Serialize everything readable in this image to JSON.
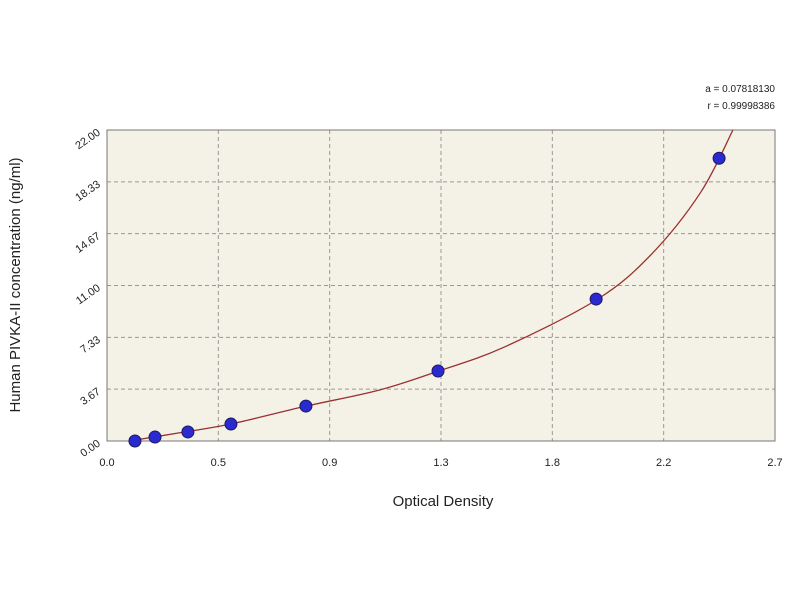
{
  "chart_data": {
    "type": "scatter",
    "x_label": "Optical Density",
    "y_label": "Human PIVKA-II concentration (ng/ml)",
    "annotations": [
      "a = 0.07818130",
      "r = 0.99998386"
    ],
    "x": [
      0.113,
      0.194,
      0.327,
      0.501,
      0.804,
      1.338,
      1.977,
      2.474
    ],
    "values": [
      0.0,
      0.28,
      0.64,
      1.2,
      2.47,
      4.95,
      10.04,
      20.0
    ],
    "color": "#2a2ad0",
    "fit": {
      "x": [
        0.09,
        0.3,
        0.5,
        0.8,
        1.1,
        1.34,
        1.6,
        1.98,
        2.2,
        2.4,
        2.53
      ],
      "values": [
        0.0,
        0.6,
        1.2,
        2.45,
        3.6,
        4.95,
        6.6,
        10.0,
        13.2,
        17.6,
        22.0
      ],
      "color": "#9a3030"
    },
    "xlim": [
      0,
      2.7
    ],
    "xticks": [
      {
        "value": 0,
        "label": "0.0"
      },
      {
        "value": 0.45,
        "label": "0.5"
      },
      0.9,
      {
        "value": 1.35,
        "label": "1.3"
      },
      1.8,
      {
        "value": 2.25,
        "label": "2.2"
      },
      2.7
    ],
    "ylim": [
      0,
      22
    ],
    "yticks": [
      {
        "value": 0,
        "label": "0.00"
      },
      3.67,
      7.33,
      {
        "value": 11,
        "label": "11.00"
      },
      14.67,
      18.33,
      {
        "value": 22,
        "label": "22.00"
      }
    ],
    "grid": true
  }
}
